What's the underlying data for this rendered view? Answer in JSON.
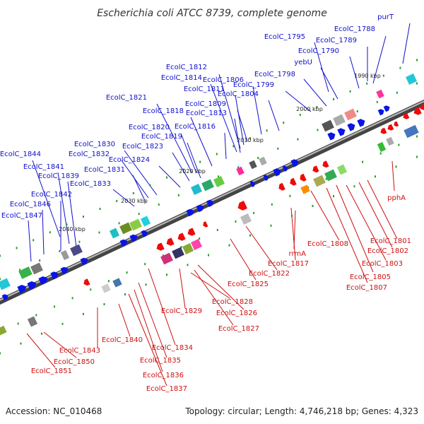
{
  "title": "Escherichia coli ATCC 8739, complete genome",
  "footer": {
    "accession": "Accession: NC_010468",
    "summary": "Topology: circular; Length: 4,746,218 bp; Genes: 4,323"
  },
  "ticks": [
    "1990 kbp",
    "2000 kbp",
    "2010 kbp",
    "2020 kbp",
    "2030 kbp",
    "2040 kbp"
  ],
  "colors": {
    "forward_label": "#1010cc",
    "reverse_label": "#cc1010",
    "forward_gene": "#0a14e6",
    "reverse_gene": "#ee0a0a"
  },
  "forward_labels": [
    "purT",
    "EcolC_1788",
    "EcolC_1789",
    "EcolC_1790",
    "EcolC_1795",
    "yebU",
    "EcolC_1798",
    "EcolC_1799",
    "EcolC_1804",
    "EcolC_1806",
    "EcolC_1809",
    "EcolC_1811",
    "EcolC_1812",
    "EcolC_1814",
    "EcolC_1813",
    "EcolC_1816",
    "EcolC_1818",
    "EcolC_1821",
    "EcolC_1820",
    "EcolC_1819",
    "EcolC_1823",
    "EcolC_1824",
    "EcolC_1830",
    "EcolC_1832",
    "EcolC_1831",
    "EcolC_1833",
    "EcolC_1844",
    "EcolC_1841",
    "EcolC_1839",
    "EcolC_1842",
    "EcolC_1846",
    "EcolC_1847"
  ],
  "reverse_labels": [
    "pphA",
    "EcolC_1801",
    "EcolC_1802",
    "EcolC_1803",
    "EcolC_1805",
    "EcolC_1807",
    "EcolC_1808",
    "rrmA",
    "EcolC_1817",
    "EcolC_1822",
    "EcolC_1825",
    "EcolC_1826",
    "EcolC_1827",
    "EcolC_1828",
    "EcolC_1829",
    "EcolC_1834",
    "EcolC_1835",
    "EcolC_1836",
    "EcolC_1837",
    "EcolC_1840",
    "EcolC_1843",
    "EcolC_1850",
    "EcolC_1851"
  ]
}
